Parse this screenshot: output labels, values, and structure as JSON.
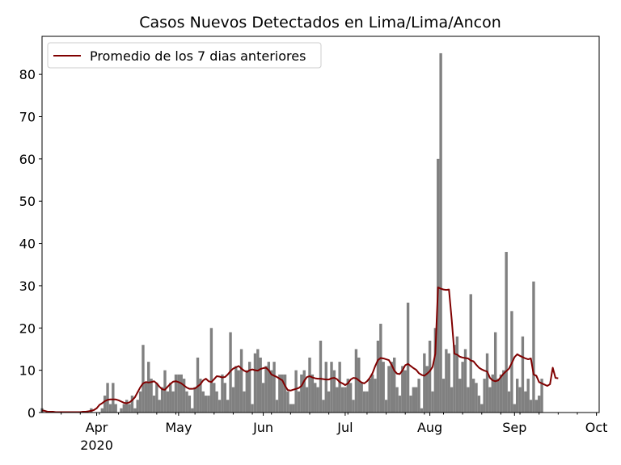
{
  "chart_data": {
    "type": "bar",
    "title": "Casos Nuevos Detectados en Lima/Lima/Ancon",
    "xlabel": "",
    "ylabel": "",
    "x_range": [
      "2020-03-12",
      "2020-10-02"
    ],
    "ylim": [
      0,
      89
    ],
    "y_ticks": [
      0,
      10,
      20,
      30,
      40,
      50,
      60,
      70,
      80
    ],
    "x_ticks": [
      {
        "date": "2020-04-01",
        "label": "Apr",
        "sublabel": "2020"
      },
      {
        "date": "2020-05-01",
        "label": "May",
        "sublabel": ""
      },
      {
        "date": "2020-06-01",
        "label": "Jun",
        "sublabel": ""
      },
      {
        "date": "2020-07-01",
        "label": "Jul",
        "sublabel": ""
      },
      {
        "date": "2020-08-01",
        "label": "Aug",
        "sublabel": ""
      },
      {
        "date": "2020-09-01",
        "label": "Sep",
        "sublabel": ""
      },
      {
        "date": "2020-10-01",
        "label": "Oct",
        "sublabel": ""
      }
    ],
    "grid": false,
    "legend_position": "top-left",
    "bar_color": "#808080",
    "line_color": "#800000",
    "start_date": "2020-03-12",
    "bars": [
      1,
      0,
      0,
      0,
      0,
      0,
      0,
      0,
      0,
      0,
      0,
      0,
      0,
      0,
      0,
      0,
      0,
      0,
      1,
      0,
      0,
      0,
      1,
      4,
      7,
      2,
      7,
      2,
      0,
      1,
      2,
      3,
      2,
      4,
      1,
      3,
      5,
      16,
      7,
      12,
      8,
      4,
      7,
      3,
      6,
      10,
      5,
      7,
      5,
      9,
      9,
      9,
      8,
      5,
      4,
      1,
      6,
      13,
      8,
      5,
      4,
      4,
      20,
      7,
      5,
      3,
      9,
      7,
      3,
      19,
      6,
      11,
      10,
      15,
      5,
      10,
      12,
      2,
      14,
      15,
      13,
      7,
      11,
      12,
      10,
      12,
      3,
      9,
      9,
      9,
      5,
      2,
      2,
      10,
      5,
      9,
      10,
      6,
      13,
      9,
      7,
      6,
      17,
      3,
      12,
      5,
      12,
      10,
      6,
      12,
      6,
      6,
      8,
      7,
      3,
      15,
      13,
      7,
      5,
      5,
      8,
      9,
      8,
      17,
      21,
      12,
      3,
      11,
      12,
      13,
      6,
      4,
      11,
      10,
      26,
      4,
      6,
      6,
      8,
      1,
      14,
      11,
      17,
      5,
      20,
      60,
      85,
      8,
      15,
      14,
      6,
      16,
      18,
      8,
      12,
      15,
      6,
      28,
      8,
      7,
      4,
      2,
      8,
      14,
      6,
      9,
      19,
      8,
      9,
      10,
      38,
      5,
      24,
      2,
      8,
      6,
      18,
      5,
      8,
      3,
      31,
      3,
      4,
      8
    ],
    "series": [
      {
        "name": "Promedio de los 7 dias anteriores",
        "values": [
          0.5,
          0.4,
          0.2,
          0.2,
          0.2,
          0.1,
          0.1,
          0.1,
          0.1,
          0.1,
          0.1,
          0.1,
          0.1,
          0.1,
          0.1,
          0.2,
          0.2,
          0.3,
          0.4,
          0.6,
          1.0,
          1.8,
          2.2,
          2.7,
          3.0,
          3.1,
          3.1,
          3.1,
          2.9,
          2.6,
          2.3,
          2.2,
          2.4,
          2.9,
          3.6,
          4.8,
          6.0,
          6.9,
          7.2,
          7.1,
          7.2,
          7.4,
          6.9,
          6.1,
          5.5,
          5.4,
          6.1,
          6.8,
          7.3,
          7.4,
          7.2,
          6.9,
          6.4,
          5.9,
          5.6,
          5.6,
          5.7,
          6.2,
          6.7,
          7.6,
          8.0,
          7.4,
          7.2,
          7.9,
          8.6,
          8.5,
          8.3,
          8.4,
          9.0,
          9.8,
          10.4,
          10.7,
          11.0,
          10.4,
          9.9,
          9.6,
          10.0,
          10.2,
          10.0,
          9.9,
          10.3,
          10.5,
          10.6,
          10.0,
          9.0,
          8.7,
          8.4,
          8.0,
          7.6,
          6.3,
          5.3,
          5.2,
          5.4,
          5.6,
          5.8,
          6.3,
          7.5,
          8.4,
          8.6,
          8.3,
          8.1,
          8.0,
          8.0,
          7.9,
          7.8,
          7.8,
          8.1,
          8.2,
          7.9,
          7.2,
          6.9,
          6.5,
          6.9,
          7.8,
          8.2,
          8.1,
          7.6,
          7.1,
          6.9,
          7.4,
          8.2,
          9.3,
          11.0,
          12.4,
          12.9,
          12.8,
          12.6,
          12.4,
          11.3,
          9.9,
          9.2,
          9.1,
          10.0,
          11.2,
          11.5,
          11.0,
          10.5,
          10.1,
          9.3,
          8.9,
          8.7,
          9.2,
          9.8,
          10.8,
          13.9,
          29.6,
          29.3,
          29.1,
          29.0,
          29.1,
          22.0,
          13.9,
          13.7,
          13.2,
          13.0,
          12.9,
          12.8,
          12.3,
          12.1,
          11.3,
          10.6,
          10.2,
          9.9,
          9.7,
          8.2,
          7.6,
          7.4,
          7.6,
          8.4,
          9.2,
          9.8,
          10.4,
          11.7,
          13.1,
          13.8,
          13.4,
          13.1,
          12.8,
          12.6,
          12.8,
          9.0,
          8.7,
          7.2,
          6.9,
          6.6,
          6.3,
          6.7,
          10.6,
          8.2,
          8.1
        ]
      }
    ]
  }
}
